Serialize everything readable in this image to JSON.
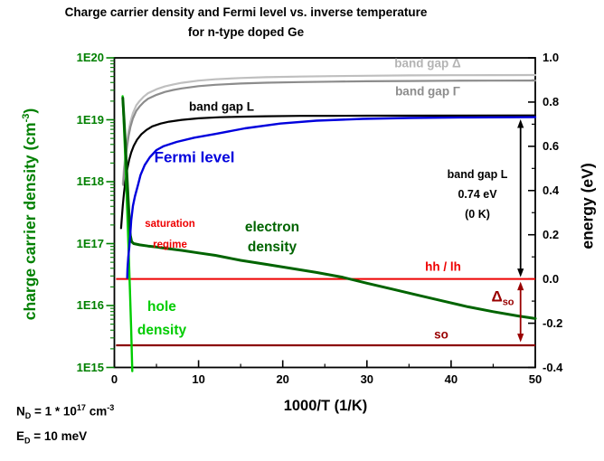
{
  "title": {
    "line1": "Charge carrier density and Fermi level vs. inverse temperature",
    "line2": "for n-type doped Ge"
  },
  "footnotes": {
    "nd": {
      "sym": "N",
      "sub": "D",
      "eq": " = 1 * 10",
      "sup": "17",
      "unit": " cm",
      "unit_sup": "-3"
    },
    "ed": {
      "sym": "E",
      "sub": "D",
      "eq": " = 10 meV"
    }
  },
  "annotations": {
    "band_gap_delta": {
      "text": "band gap Δ"
    },
    "band_gap_gamma": {
      "text": "band gap Γ"
    },
    "band_gap_l_curve": {
      "text": "band gap L"
    },
    "fermi": {
      "text": "Fermi level"
    },
    "electron": {
      "line1": "electron",
      "line2": "density"
    },
    "hole": {
      "line1": "hole",
      "line2": "density"
    },
    "saturation": {
      "line1": "saturation",
      "line2": "regime"
    },
    "band_gap_note": {
      "line1": "band gap L",
      "line2": "0.74 eV",
      "line3": "(0 K)"
    },
    "hh_lh": {
      "text": "hh / lh"
    },
    "so": {
      "text": "so"
    },
    "delta_so": {
      "symbol": "Δ",
      "sub": "so"
    }
  },
  "chart_data": {
    "type": "line",
    "title": "Charge carrier density and Fermi level vs. inverse temperature for n-type doped Ge",
    "x_axis": {
      "label": "1000/T (1/K)",
      "min": 0,
      "max": 50,
      "major_ticks": [
        {
          "label": "0",
          "value": 0
        },
        {
          "label": "10",
          "value": 10
        },
        {
          "label": "20",
          "value": 20
        },
        {
          "label": "30",
          "value": 30
        },
        {
          "label": "40",
          "value": 40
        },
        {
          "label": "50",
          "value": 50
        }
      ],
      "minor_ticks": [
        5,
        15,
        25,
        35,
        45
      ]
    },
    "y_left": {
      "label": "charge carrier density (cm-3)",
      "label_parts": {
        "main": "charge carrier density (cm",
        "sup": "-3",
        "close": ")"
      },
      "scale": "log",
      "min_log10": 15,
      "max_log10": 20,
      "major_ticks": [
        {
          "label": "1E20",
          "log10": 20
        },
        {
          "label": "1E19",
          "log10": 19
        },
        {
          "label": "1E18",
          "log10": 18
        },
        {
          "label": "1E17",
          "log10": 17
        },
        {
          "label": "1E16",
          "log10": 16
        },
        {
          "label": "1E15",
          "log10": 15
        }
      ]
    },
    "y_right": {
      "label": "energy (eV)",
      "min": -0.4,
      "max": 1.0,
      "major_ticks": [
        {
          "label": "1.0",
          "value": 1.0
        },
        {
          "label": "0.8",
          "value": 0.8
        },
        {
          "label": "0.6",
          "value": 0.6
        },
        {
          "label": "0.4",
          "value": 0.4
        },
        {
          "label": "0.2",
          "value": 0.2
        },
        {
          "label": "0.0",
          "value": 0.0
        },
        {
          "label": "-0.2",
          "value": -0.2
        },
        {
          "label": "-0.4",
          "value": -0.4
        }
      ],
      "minor_ticks": [
        0.9,
        0.7,
        0.5,
        0.3,
        0.1,
        -0.1,
        -0.3
      ]
    },
    "series": [
      {
        "name": "band gap Δ",
        "axis": "right_energy",
        "color": "#bfbfbf",
        "width": 2.2,
        "points": [
          [
            1.0,
            0.43
          ],
          [
            1.1,
            0.48
          ],
          [
            1.2,
            0.525
          ],
          [
            1.35,
            0.575
          ],
          [
            1.5,
            0.62
          ],
          [
            1.7,
            0.67
          ],
          [
            1.9,
            0.71
          ],
          [
            2.2,
            0.75
          ],
          [
            2.6,
            0.785
          ],
          [
            3.0,
            0.805
          ],
          [
            3.5,
            0.825
          ],
          [
            4.0,
            0.84
          ],
          [
            5.0,
            0.858
          ],
          [
            6.0,
            0.871
          ],
          [
            7.0,
            0.88
          ],
          [
            8.0,
            0.887
          ],
          [
            10,
            0.897
          ],
          [
            12,
            0.903
          ],
          [
            15,
            0.909
          ],
          [
            18,
            0.9125
          ],
          [
            22,
            0.9155
          ],
          [
            26,
            0.9175
          ],
          [
            30,
            0.919
          ],
          [
            35,
            0.9205
          ],
          [
            40,
            0.9215
          ],
          [
            45,
            0.922
          ],
          [
            50,
            0.9225
          ]
        ]
      },
      {
        "name": "band gap Γ",
        "axis": "right_energy",
        "color": "#8c8c8c",
        "width": 2.2,
        "points": [
          [
            1.05,
            0.425
          ],
          [
            1.2,
            0.505
          ],
          [
            1.35,
            0.555
          ],
          [
            1.5,
            0.598
          ],
          [
            1.7,
            0.648
          ],
          [
            1.9,
            0.687
          ],
          [
            2.2,
            0.726
          ],
          [
            2.6,
            0.76
          ],
          [
            3.0,
            0.78
          ],
          [
            3.5,
            0.8
          ],
          [
            4.0,
            0.815
          ],
          [
            5.0,
            0.833
          ],
          [
            6.0,
            0.846
          ],
          [
            7.0,
            0.855
          ],
          [
            8.0,
            0.862
          ],
          [
            10,
            0.872
          ],
          [
            12,
            0.878
          ],
          [
            15,
            0.884
          ],
          [
            18,
            0.8875
          ],
          [
            22,
            0.8905
          ],
          [
            26,
            0.8925
          ],
          [
            30,
            0.894
          ],
          [
            35,
            0.8955
          ],
          [
            40,
            0.8965
          ],
          [
            45,
            0.897
          ],
          [
            50,
            0.8975
          ]
        ]
      },
      {
        "name": "band gap L",
        "axis": "right_energy",
        "color": "#000000",
        "width": 2.2,
        "points": [
          [
            0.8,
            0.23
          ],
          [
            0.9,
            0.285
          ],
          [
            1.0,
            0.332
          ],
          [
            1.15,
            0.392
          ],
          [
            1.3,
            0.44
          ],
          [
            1.5,
            0.492
          ],
          [
            1.75,
            0.538
          ],
          [
            2.0,
            0.572
          ],
          [
            2.3,
            0.602
          ],
          [
            2.7,
            0.63
          ],
          [
            3.2,
            0.654
          ],
          [
            3.8,
            0.674
          ],
          [
            4.5,
            0.69
          ],
          [
            5.5,
            0.703
          ],
          [
            6.5,
            0.7115
          ],
          [
            8,
            0.7195
          ],
          [
            10,
            0.7265
          ],
          [
            12.5,
            0.7315
          ],
          [
            15,
            0.734
          ],
          [
            18,
            0.736
          ],
          [
            22,
            0.7375
          ],
          [
            26,
            0.738
          ],
          [
            30,
            0.7385
          ],
          [
            40,
            0.739
          ],
          [
            50,
            0.7395
          ]
        ]
      },
      {
        "name": "hole density",
        "axis": "left_log",
        "color": "#00cc00",
        "width": 2.4,
        "points": [
          [
            0.98,
            19.38
          ],
          [
            1.1,
            19.02
          ],
          [
            1.25,
            18.55
          ],
          [
            1.4,
            18.02
          ],
          [
            1.55,
            17.45
          ],
          [
            1.7,
            16.87
          ],
          [
            1.85,
            16.25
          ],
          [
            2.0,
            15.6
          ],
          [
            2.13,
            14.94
          ]
        ]
      },
      {
        "name": "electron density",
        "axis": "left_log",
        "color": "#006400",
        "width": 3,
        "points": [
          [
            1.0,
            19.35
          ],
          [
            1.15,
            19.0
          ],
          [
            1.3,
            18.62
          ],
          [
            1.45,
            18.22
          ],
          [
            1.6,
            17.82
          ],
          [
            1.75,
            17.44
          ],
          [
            1.9,
            17.13
          ],
          [
            2.05,
            17.03
          ],
          [
            2.3,
            17.0
          ],
          [
            3,
            16.98
          ],
          [
            4,
            16.96
          ],
          [
            5,
            16.945
          ],
          [
            6,
            16.925
          ],
          [
            8,
            16.89
          ],
          [
            10,
            16.85
          ],
          [
            12,
            16.81
          ],
          [
            15,
            16.73
          ],
          [
            18,
            16.665
          ],
          [
            21,
            16.6
          ],
          [
            24,
            16.535
          ],
          [
            27,
            16.46
          ],
          [
            30,
            16.36
          ],
          [
            33,
            16.265
          ],
          [
            36,
            16.17
          ],
          [
            39,
            16.075
          ],
          [
            42,
            15.98
          ],
          [
            45,
            15.9
          ],
          [
            48,
            15.83
          ],
          [
            50,
            15.79
          ]
        ]
      },
      {
        "name": "Fermi level",
        "axis": "right_energy",
        "color": "#0000dd",
        "width": 2.4,
        "points": [
          [
            1.52,
            0.005
          ],
          [
            1.56,
            0.045
          ],
          [
            1.65,
            0.1
          ],
          [
            1.77,
            0.145
          ],
          [
            1.9,
            0.21
          ],
          [
            2.0,
            0.265
          ],
          [
            2.2,
            0.33
          ],
          [
            2.45,
            0.375
          ],
          [
            2.8,
            0.425
          ],
          [
            3.1,
            0.47
          ],
          [
            3.6,
            0.515
          ],
          [
            4.2,
            0.55
          ],
          [
            5.0,
            0.583
          ],
          [
            5.8,
            0.6
          ],
          [
            7.4,
            0.62
          ],
          [
            9.5,
            0.639
          ],
          [
            12,
            0.656
          ],
          [
            15.5,
            0.681
          ],
          [
            19.7,
            0.703
          ],
          [
            24,
            0.716
          ],
          [
            29.5,
            0.724
          ],
          [
            35,
            0.728
          ],
          [
            42,
            0.7305
          ],
          [
            50,
            0.732
          ]
        ]
      }
    ],
    "hlines": [
      {
        "name": "hh / lh",
        "energy": 0.0,
        "color": "#ee0000",
        "width": 2,
        "x_start": 0.2,
        "x_end": 50
      },
      {
        "name": "so",
        "energy": -0.3,
        "color": "#8b0000",
        "width": 2.2,
        "x_start": 0.2,
        "x_end": 50
      }
    ],
    "arrows": [
      {
        "name": "band gap L span",
        "x": 48.25,
        "from_energy": 0.722,
        "to_energy": 0.008,
        "color": "#000000"
      },
      {
        "name": "delta so span",
        "x": 48.25,
        "from_energy": -0.012,
        "to_energy": -0.286,
        "color": "#990000"
      }
    ],
    "legend_position": "labels-on-plot",
    "grid": false
  }
}
